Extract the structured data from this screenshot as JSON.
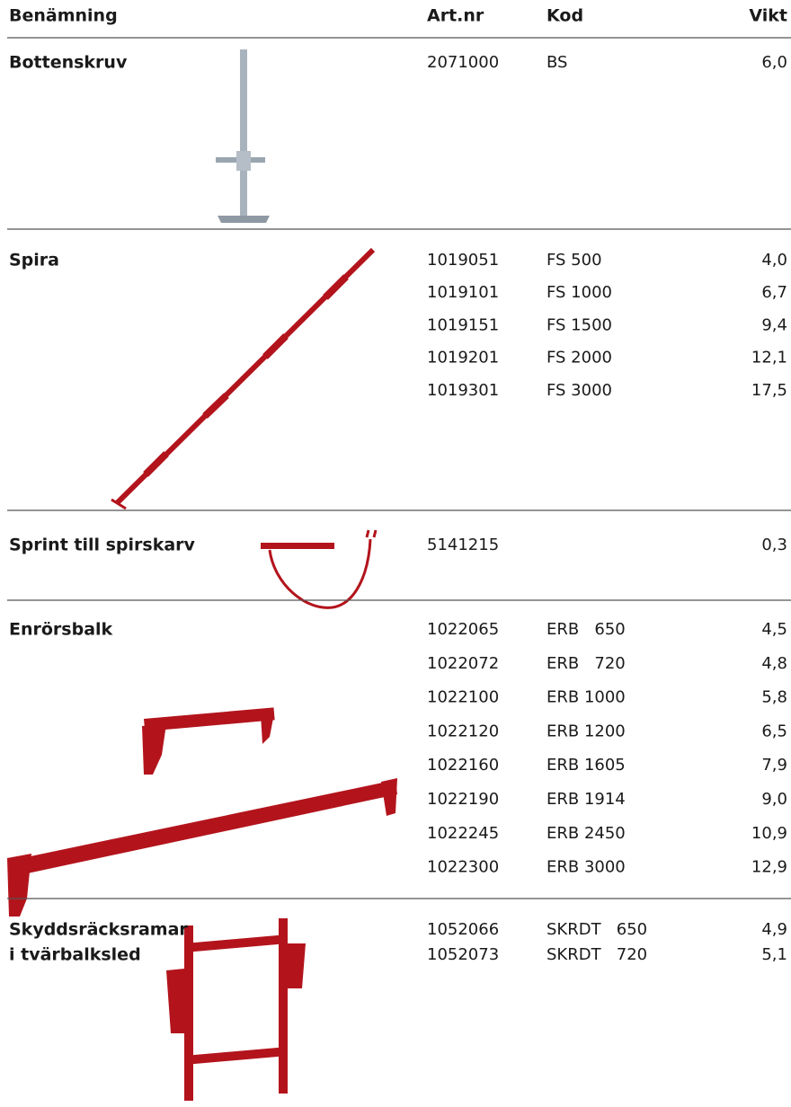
{
  "header": {
    "name": "Benämning",
    "art_nr": "Art.nr",
    "kod": "Kod",
    "vikt": "Vikt"
  },
  "sections": [
    {
      "name": [
        "Bottenskruv"
      ],
      "rows": [
        {
          "art_nr": "2071000",
          "kod": "BS",
          "vikt": "6,0"
        }
      ]
    },
    {
      "name": [
        "Spira"
      ],
      "rows": [
        {
          "art_nr": "1019051",
          "kod": "FS 500",
          "vikt": "4,0"
        },
        {
          "art_nr": "1019101",
          "kod": "FS 1000",
          "vikt": "6,7"
        },
        {
          "art_nr": "1019151",
          "kod": "FS 1500",
          "vikt": "9,4"
        },
        {
          "art_nr": "1019201",
          "kod": "FS 2000",
          "vikt": "12,1"
        },
        {
          "art_nr": "1019301",
          "kod": "FS 3000",
          "vikt": "17,5"
        }
      ]
    },
    {
      "name": [
        "Sprint till spirskarv"
      ],
      "rows": [
        {
          "art_nr": "5141215",
          "vikt": "0,3"
        }
      ]
    },
    {
      "name": [
        "Enrörsbalk"
      ],
      "rows": [
        {
          "art_nr": "1022065",
          "kod": "ERB   650",
          "vikt": "4,5"
        },
        {
          "art_nr": "1022072",
          "kod": "ERB   720",
          "vikt": "4,8"
        },
        {
          "art_nr": "1022100",
          "kod": "ERB 1000",
          "vikt": "5,8"
        },
        {
          "art_nr": "1022120",
          "kod": "ERB 1200",
          "vikt": "6,5"
        },
        {
          "art_nr": "1022160",
          "kod": "ERB 1605",
          "vikt": "7,9"
        },
        {
          "art_nr": "1022190",
          "kod": "ERB 1914",
          "vikt": "9,0"
        },
        {
          "art_nr": "1022245",
          "kod": "ERB 2450",
          "vikt": "10,9"
        },
        {
          "art_nr": "1022300",
          "kod": "ERB 3000",
          "vikt": "12,9"
        }
      ]
    },
    {
      "name": [
        "Skyddsräcksramar",
        "i tvärbalksled"
      ],
      "rows": [
        {
          "art_nr": "1052066",
          "kod": "SKRDT   650",
          "vikt": "4,9"
        },
        {
          "art_nr": "1052073",
          "kod": "SKRDT   720",
          "vikt": "5,1"
        }
      ]
    }
  ]
}
